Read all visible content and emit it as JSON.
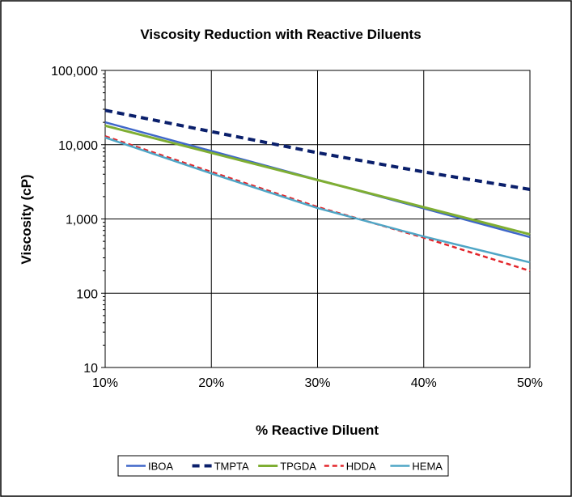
{
  "chart_data": {
    "type": "line",
    "title": "Viscosity Reduction with Reactive Diluents",
    "xlabel": "% Reactive Diluent",
    "ylabel": "Viscosity (cP)",
    "y_scale": "log",
    "ylim": [
      10,
      100000
    ],
    "xlim": [
      0.1,
      0.5
    ],
    "x_ticks": [
      0.1,
      0.2,
      0.3,
      0.4,
      0.5
    ],
    "x_tick_labels": [
      "10%",
      "20%",
      "30%",
      "40%",
      "50%"
    ],
    "y_ticks": [
      10,
      100,
      1000,
      10000,
      100000
    ],
    "y_tick_labels": [
      "10",
      "100",
      "1,000",
      "10,000",
      "100,000"
    ],
    "grid": true,
    "legend_position": "bottom",
    "series": [
      {
        "name": "IBOA",
        "color": "#3f67c9",
        "style": "solid",
        "x": [
          0.1,
          0.5
        ],
        "y": [
          20000,
          570
        ]
      },
      {
        "name": "TMPTA",
        "color": "#0a1f6b",
        "style": "dashed-bold",
        "x": [
          0.1,
          0.2,
          0.3,
          0.4,
          0.5
        ],
        "y": [
          29000,
          15000,
          7800,
          4300,
          2500
        ]
      },
      {
        "name": "TPGDA",
        "color": "#7fae33",
        "style": "solid-fine",
        "x": [
          0.1,
          0.5
        ],
        "y": [
          18000,
          620
        ]
      },
      {
        "name": "HDDA",
        "color": "#e3262b",
        "style": "dashed",
        "x": [
          0.1,
          0.2,
          0.3,
          0.4,
          0.5
        ],
        "y": [
          13000,
          4300,
          1450,
          560,
          200
        ]
      },
      {
        "name": "HEMA",
        "color": "#4fa6c6",
        "style": "solid",
        "x": [
          0.1,
          0.2,
          0.3,
          0.4,
          0.5
        ],
        "y": [
          12500,
          4100,
          1400,
          580,
          260
        ]
      }
    ]
  }
}
